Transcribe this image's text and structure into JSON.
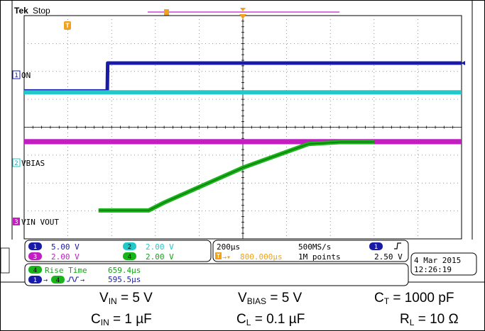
{
  "header": {
    "brand": "Tek",
    "state": "Stop"
  },
  "colors": {
    "ch1": "#1a1aa8",
    "ch2": "#23c8c8",
    "ch3": "#c21ec2",
    "ch4": "#19b419",
    "trigger": "#f2a21a"
  },
  "chart_data": {
    "type": "line",
    "title": "",
    "xlabel": "",
    "ylabel": "",
    "x_unit": "µs",
    "x_range": [
      -1000,
      1000
    ],
    "x_divisions": 10,
    "y_divisions": 8,
    "grid": true,
    "series": [
      {
        "name": "ON",
        "channel": 1,
        "x": [
          -1000,
          -620,
          -618,
          1000
        ],
        "y": [
          1.3,
          1.3,
          2.3,
          2.3
        ]
      },
      {
        "name": "",
        "channel": 2,
        "x": [
          -1000,
          1000
        ],
        "y": [
          1.25,
          1.25
        ]
      },
      {
        "name": "VBIAS",
        "channel": 2,
        "x": [
          -1000,
          1000
        ],
        "y": [
          -0.5,
          -0.5
        ]
      },
      {
        "name": "VIN VOUT",
        "channel": 4,
        "x": [
          -660,
          -430,
          -360,
          0,
          300,
          450,
          600
        ],
        "y": [
          -2.98,
          -2.98,
          -2.7,
          -1.45,
          -0.6,
          -0.53,
          -0.53
        ]
      }
    ],
    "markers": {
      "ch1": "1",
      "ch2": "2",
      "ch3": "3",
      "ch4": "4",
      "trigger_label": "T"
    },
    "labels": {
      "ch1": "ON",
      "ch2": "VBIAS",
      "ch34": "VIN VOUT"
    }
  },
  "readout": {
    "ch1_scale": "5.00 V",
    "ch2_scale": "2.00 V",
    "ch3_scale": "2.00 V",
    "ch4_scale": "2.00 V",
    "timebase": "200µs",
    "sample_rate": "500MS/s",
    "trigger_pos": "800.000µs",
    "record_length": "1M points",
    "trigger_level": "2.50 V",
    "date": "4 Mar  2015",
    "time": "12:26:19",
    "meas1_label": "Rise Time",
    "meas1_value": "659.4µs",
    "meas2_value": "595.5µs"
  },
  "conditions": {
    "vin_label": "V",
    "vin_sub": "IN",
    "vin_val": " = 5 V",
    "vbias_label": "V",
    "vbias_sub": "BIAS",
    "vbias_val": " = 5 V",
    "ct_label": "C",
    "ct_sub": "T",
    "ct_val": " = 1000 pF",
    "cin_label": "C",
    "cin_sub": "IN",
    "cin_val": " = 1 µF",
    "cl_label": "C",
    "cl_sub": "L",
    "cl_val": " = 0.1 µF",
    "rl_label": "R",
    "rl_sub": "L",
    "rl_val": " = 10 Ω"
  }
}
